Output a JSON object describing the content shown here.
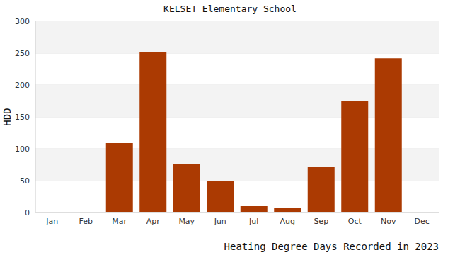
{
  "chart_data": {
    "type": "bar",
    "title": "KELSET Elementary School",
    "subtitle": "Heating Degree Days Recorded in 2023",
    "y_label": "HDD",
    "categories": [
      "Jan",
      "Feb",
      "Mar",
      "Apr",
      "May",
      "Jun",
      "Jul",
      "Aug",
      "Sep",
      "Oct",
      "Nov",
      "Dec"
    ],
    "values": [
      0,
      0,
      109,
      251,
      76,
      49,
      10,
      7,
      71,
      175,
      242,
      0
    ],
    "color": "#ab3a02",
    "ylim": [
      0,
      300
    ],
    "yticks": [
      0,
      50,
      100,
      150,
      200,
      250,
      300
    ],
    "grid": true
  }
}
